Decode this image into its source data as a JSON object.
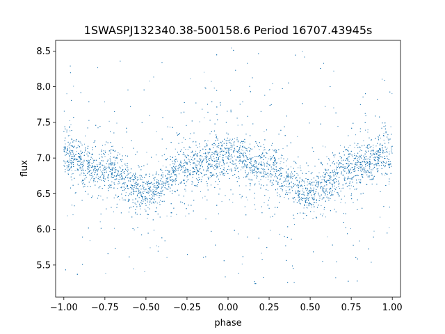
{
  "chart_data": {
    "type": "scatter",
    "title": "1SWASPJ132340.38-500158.6 Period 16707.43945s",
    "xlabel": "phase",
    "ylabel": "flux",
    "xlim": [
      -1.05,
      1.05
    ],
    "ylim": [
      5.05,
      8.65
    ],
    "x_ticks": [
      -1.0,
      -0.75,
      -0.5,
      -0.25,
      0.0,
      0.25,
      0.5,
      0.75,
      1.0
    ],
    "x_tick_labels": [
      "−1.00",
      "−0.75",
      "−0.50",
      "−0.25",
      "0.00",
      "0.25",
      "0.50",
      "0.75",
      "1.00"
    ],
    "y_ticks": [
      5.5,
      6.0,
      6.5,
      7.0,
      7.5,
      8.0,
      8.5
    ],
    "y_tick_labels": [
      "5.5",
      "6.0",
      "6.5",
      "7.0",
      "7.5",
      "8.0",
      "8.5"
    ],
    "grid": false,
    "legend": "none",
    "marker_color": "#1f77b4",
    "phase_range": [
      -1.0,
      1.0
    ],
    "curve": [
      {
        "phase": -1.0,
        "flux": 7.02
      },
      {
        "phase": -0.75,
        "flux": 6.85
      },
      {
        "phase": -0.5,
        "flux": 6.5
      },
      {
        "phase": -0.25,
        "flux": 6.87
      },
      {
        "phase": 0.0,
        "flux": 7.05
      },
      {
        "phase": 0.25,
        "flux": 6.85
      },
      {
        "phase": 0.5,
        "flux": 6.5
      },
      {
        "phase": 0.75,
        "flux": 6.87
      },
      {
        "phase": 1.0,
        "flux": 7.05
      }
    ],
    "scatter_core": 0.2,
    "flux_range": [
      5.2,
      8.55
    ]
  }
}
